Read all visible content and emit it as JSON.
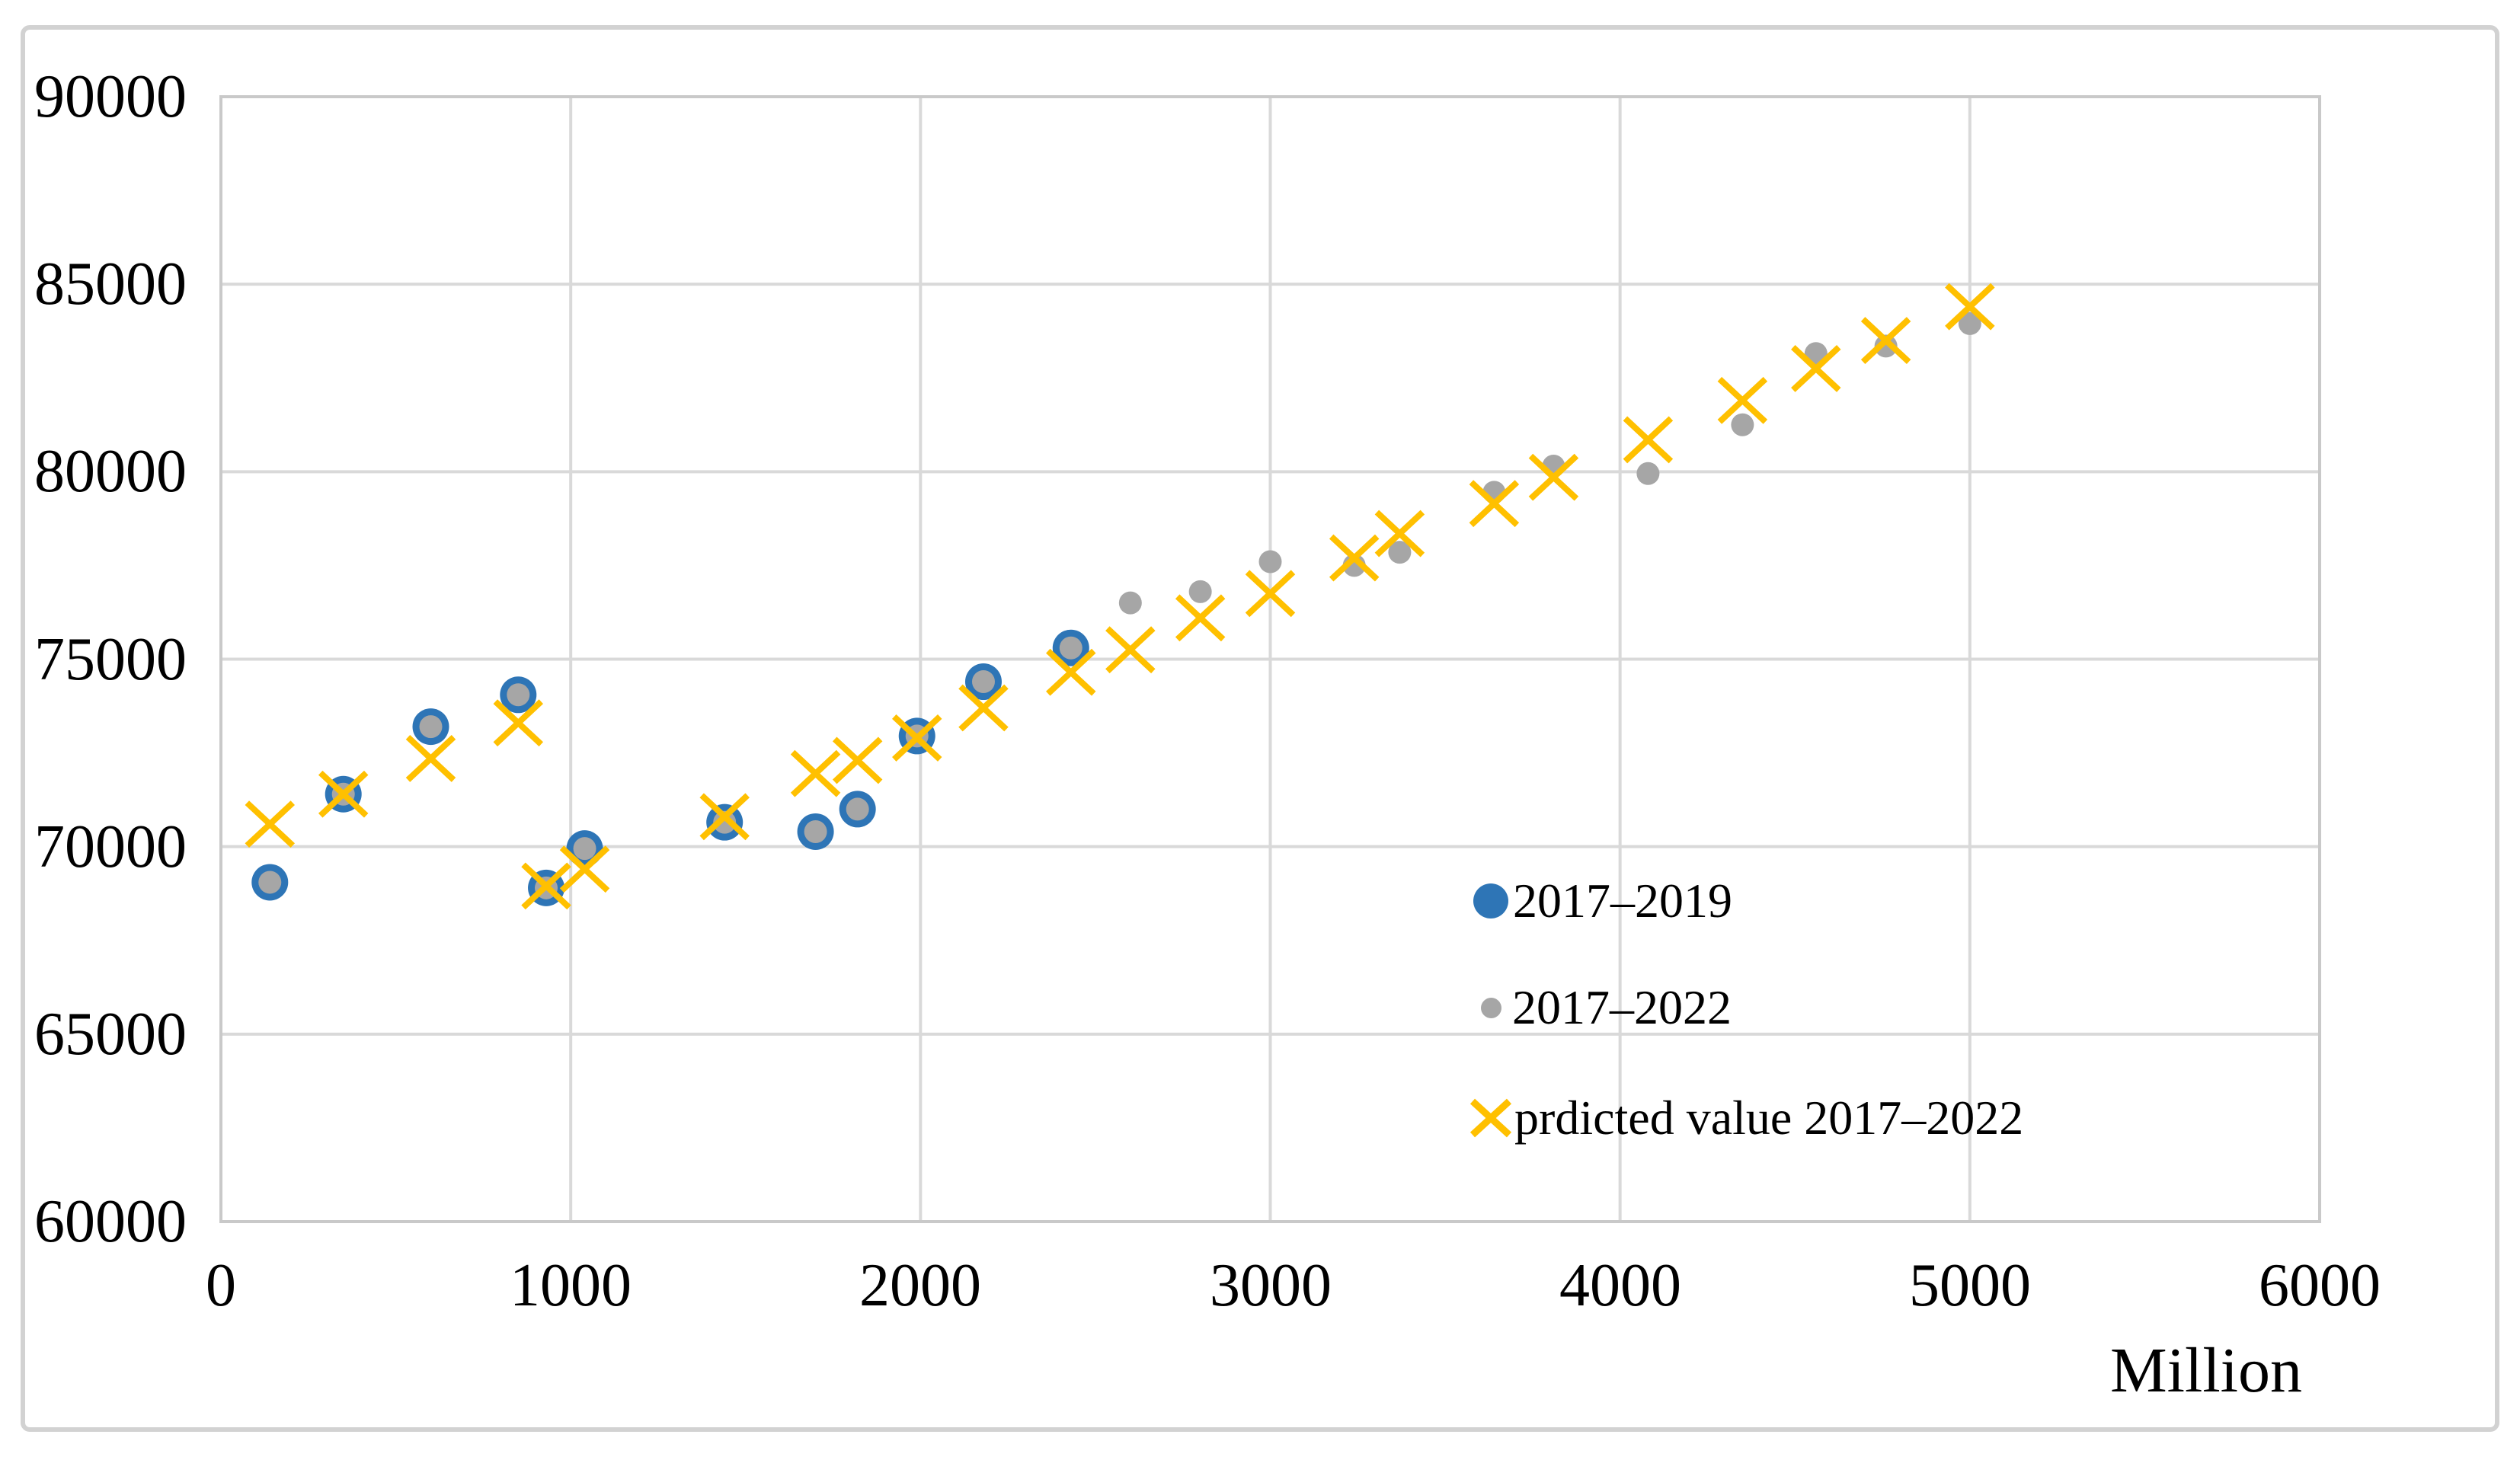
{
  "chart_data": {
    "type": "scatter",
    "title": "",
    "xlabel": "Million",
    "ylabel": "",
    "x_range": [
      0,
      6000
    ],
    "y_range": [
      60000,
      90000
    ],
    "x_ticks": [
      0,
      1000,
      2000,
      3000,
      4000,
      5000,
      6000
    ],
    "y_ticks": [
      90000,
      85000,
      80000,
      75000,
      70000,
      65000,
      60000
    ],
    "grid": true,
    "grid_color": "#D9D9D9",
    "plot_border_color": "#C9C9C9",
    "legend_position": "inside lower-right, no border",
    "series": [
      {
        "name": "2017–2019",
        "marker": "circle",
        "color": "#2E75B6",
        "points": [
          [
            140,
            69050
          ],
          [
            350,
            71400
          ],
          [
            600,
            73200
          ],
          [
            850,
            74050
          ],
          [
            930,
            68900
          ],
          [
            1040,
            69950
          ],
          [
            1440,
            70650
          ],
          [
            1700,
            70400
          ],
          [
            1820,
            71000
          ],
          [
            1990,
            72950
          ],
          [
            2180,
            74400
          ],
          [
            2430,
            75300
          ]
        ]
      },
      {
        "name": "2017–2022",
        "marker": "circle",
        "color": "#A6A6A6",
        "points": [
          [
            140,
            69050
          ],
          [
            350,
            71400
          ],
          [
            600,
            73200
          ],
          [
            850,
            74050
          ],
          [
            930,
            68900
          ],
          [
            1040,
            69950
          ],
          [
            1440,
            70650
          ],
          [
            1700,
            70400
          ],
          [
            1820,
            71000
          ],
          [
            1990,
            72950
          ],
          [
            2180,
            74400
          ],
          [
            2430,
            75300
          ],
          [
            2600,
            76500
          ],
          [
            2800,
            76800
          ],
          [
            3000,
            77600
          ],
          [
            3240,
            77500
          ],
          [
            3370,
            77850
          ],
          [
            3640,
            79450
          ],
          [
            3810,
            80150
          ],
          [
            4080,
            79950
          ],
          [
            4350,
            81250
          ],
          [
            4560,
            83150
          ],
          [
            4760,
            83350
          ],
          [
            5000,
            83950
          ]
        ]
      },
      {
        "name": "prdicted value 2017–2022",
        "marker": "x",
        "color": "#FFC000",
        "points": [
          [
            140,
            70600
          ],
          [
            350,
            71400
          ],
          [
            600,
            72350
          ],
          [
            850,
            73300
          ],
          [
            930,
            68950
          ],
          [
            1040,
            69400
          ],
          [
            1440,
            70800
          ],
          [
            1700,
            71950
          ],
          [
            1820,
            72300
          ],
          [
            1990,
            72900
          ],
          [
            2180,
            73700
          ],
          [
            2430,
            74650
          ],
          [
            2600,
            75250
          ],
          [
            2800,
            76100
          ],
          [
            3000,
            76750
          ],
          [
            3240,
            77700
          ],
          [
            3370,
            78350
          ],
          [
            3640,
            79150
          ],
          [
            3810,
            79850
          ],
          [
            4080,
            80850
          ],
          [
            4350,
            81900
          ],
          [
            4560,
            82750
          ],
          [
            4760,
            83500
          ],
          [
            5000,
            84400
          ]
        ]
      }
    ]
  }
}
